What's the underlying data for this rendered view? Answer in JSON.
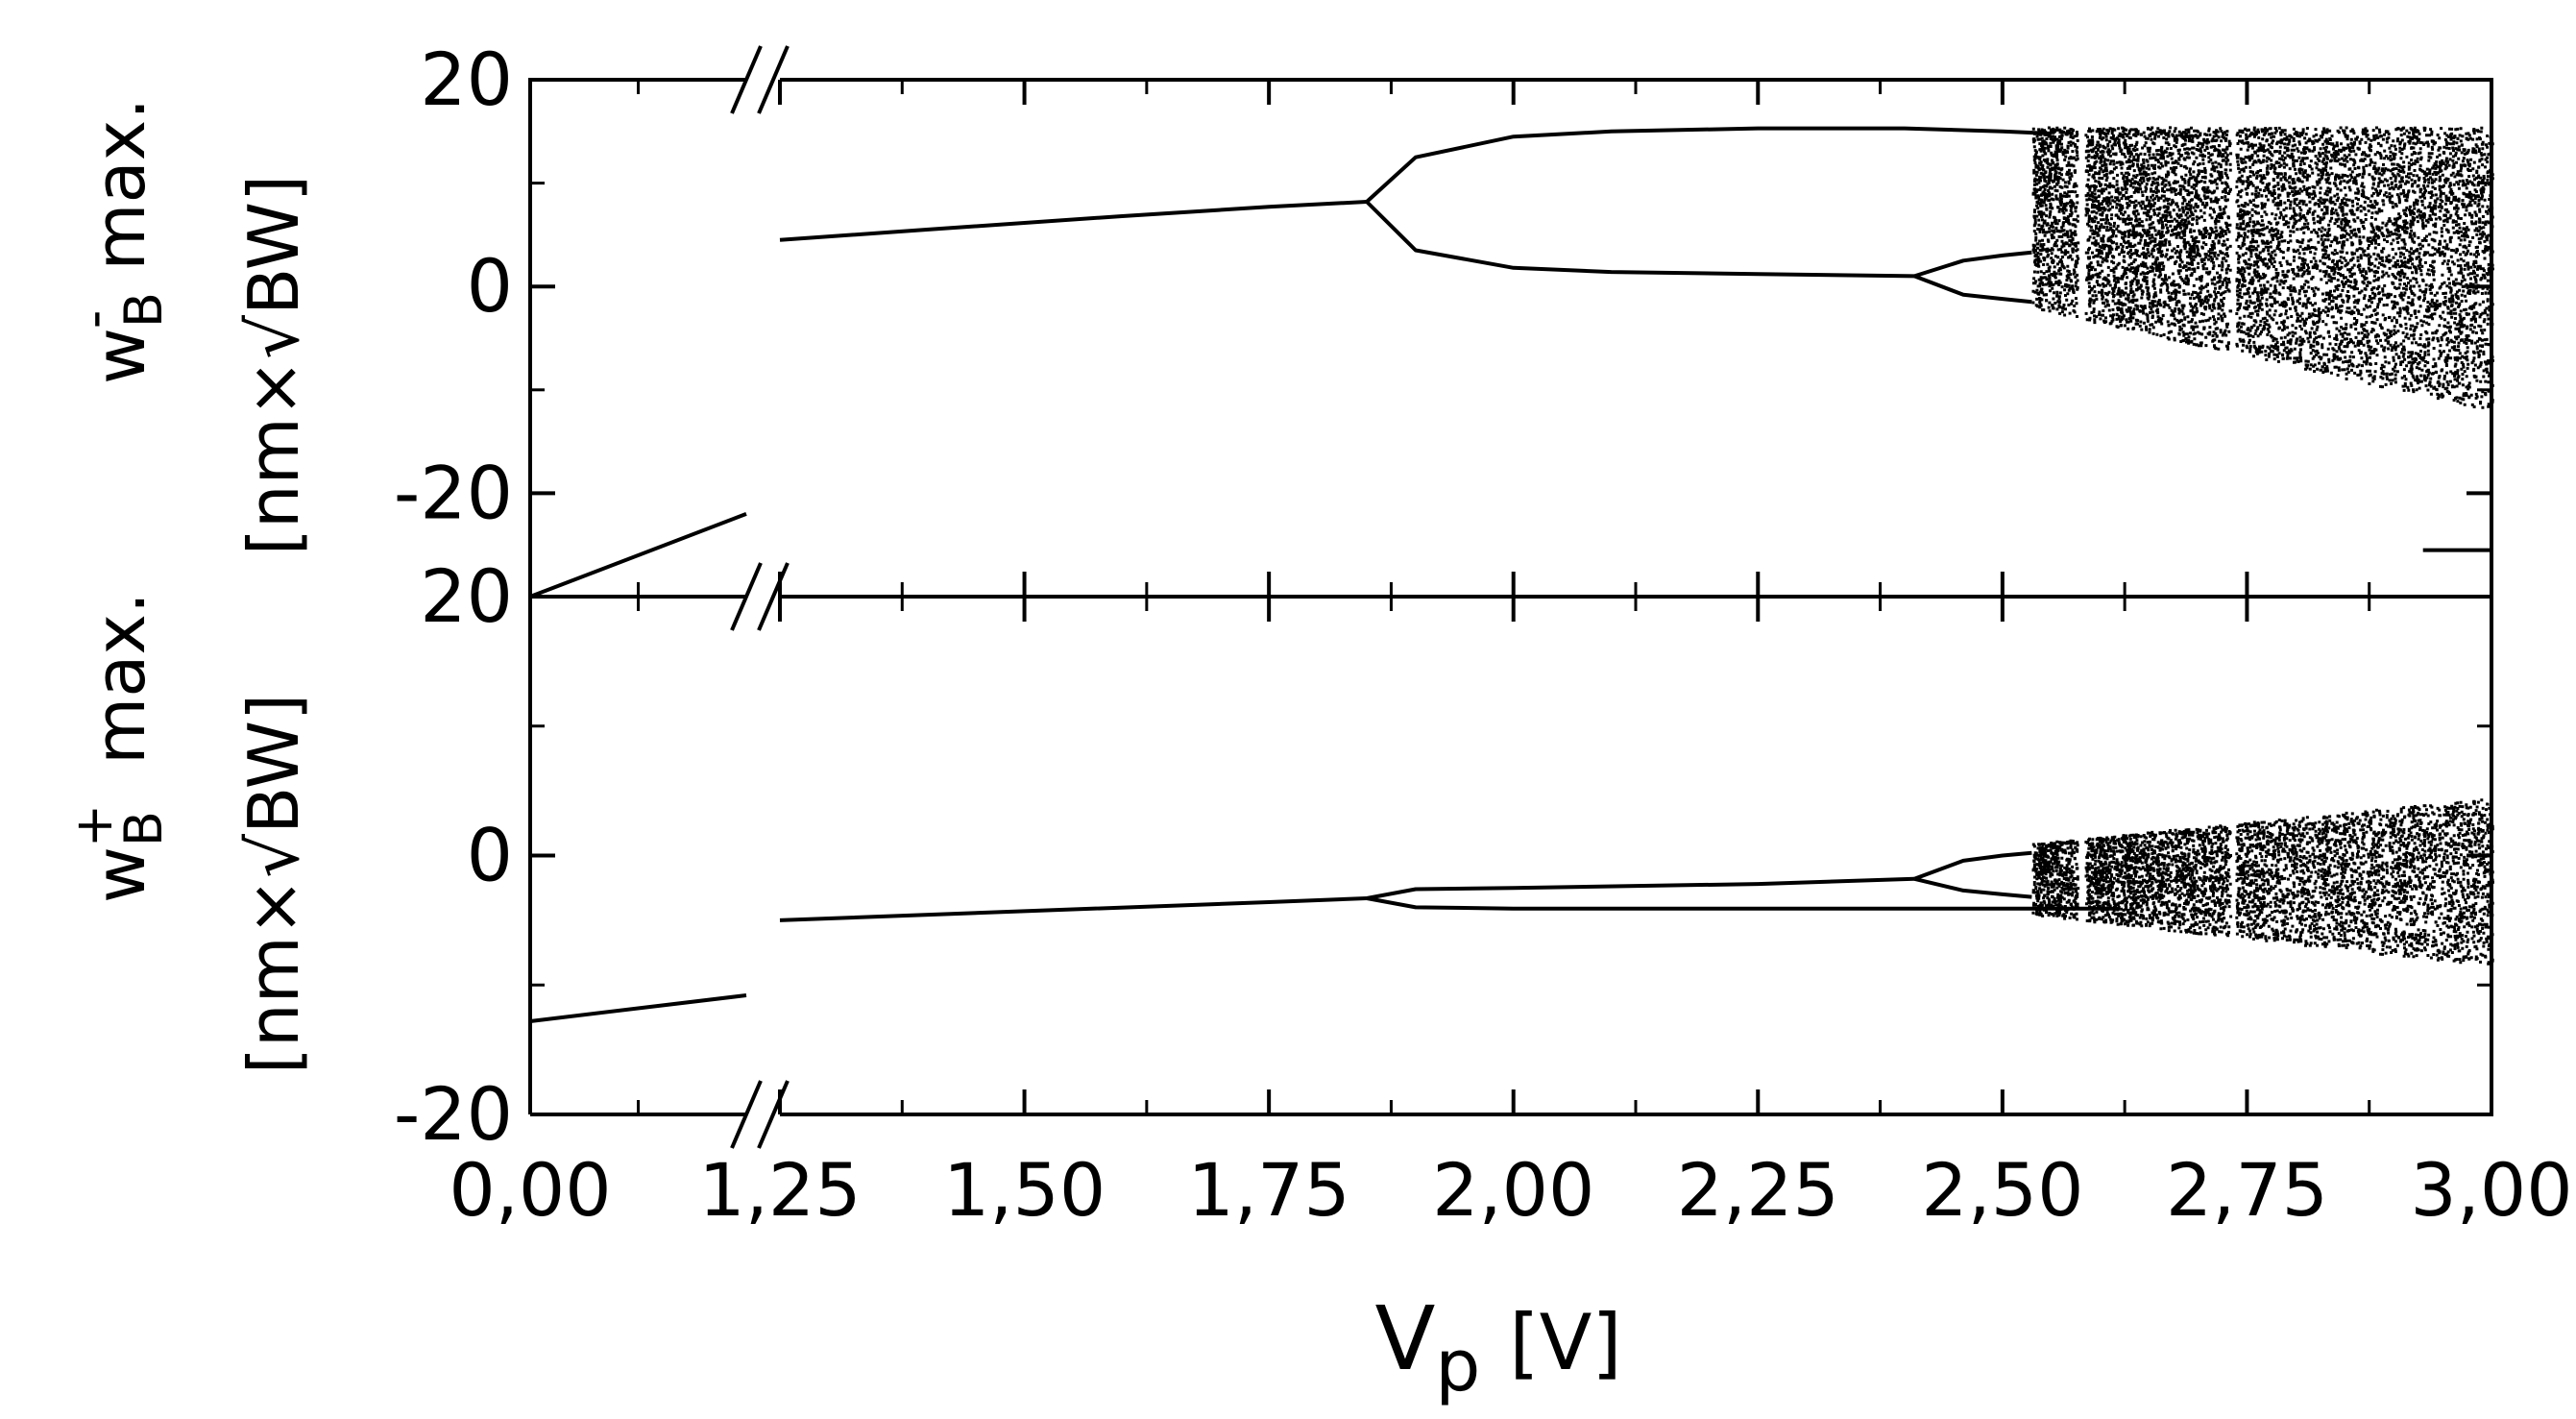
{
  "chart_data": {
    "type": "scatter",
    "description": "Bifurcation diagram with broken x-axis, two stacked panels sharing x",
    "xlabel": {
      "main": "V",
      "sub": "p",
      "unit": "[V]"
    },
    "x_ticks": [
      "0,00",
      "1,25",
      "1,50",
      "1,75",
      "2,00",
      "2,25",
      "2,50",
      "2,75",
      "3,00"
    ],
    "x_break": {
      "segment1": [
        0.0,
        0.55
      ],
      "segment2": [
        1.25,
        3.0
      ]
    },
    "panels": [
      {
        "name": "top",
        "ylabel_main": "w",
        "ylabel_sub": "B",
        "ylabel_sup": "-",
        "ylabel_suffix": " max.",
        "ylabel_units": "[nm×√BW]",
        "ylim": [
          -30,
          20
        ],
        "y_ticks": [
          {
            "value": 20,
            "label": "20"
          },
          {
            "value": 0,
            "label": "0"
          },
          {
            "value": -20,
            "label": "-20"
          }
        ],
        "series": [
          {
            "kind": "line",
            "points": [
              [
                0.0,
                -30
              ],
              [
                0.55,
                -22
              ]
            ]
          },
          {
            "kind": "line",
            "points": [
              [
                1.25,
                4.5
              ],
              [
                1.4,
                5.5
              ],
              [
                1.6,
                6.8
              ],
              [
                1.75,
                7.7
              ],
              [
                1.85,
                8.2
              ]
            ]
          },
          {
            "kind": "line",
            "points": [
              [
                1.85,
                8.2
              ],
              [
                1.9,
                12.5
              ],
              [
                2.0,
                14.5
              ],
              [
                2.1,
                15.0
              ],
              [
                2.25,
                15.3
              ],
              [
                2.4,
                15.3
              ],
              [
                2.5,
                15.0
              ],
              [
                2.55,
                14.8
              ]
            ]
          },
          {
            "kind": "line",
            "points": [
              [
                1.85,
                8.2
              ],
              [
                1.9,
                3.5
              ],
              [
                2.0,
                1.8
              ],
              [
                2.1,
                1.4
              ],
              [
                2.25,
                1.2
              ],
              [
                2.41,
                1.0
              ]
            ]
          },
          {
            "kind": "line",
            "points": [
              [
                2.41,
                1.0
              ],
              [
                2.46,
                2.5
              ],
              [
                2.5,
                3.0
              ],
              [
                2.53,
                3.3
              ]
            ]
          },
          {
            "kind": "line",
            "points": [
              [
                2.41,
                1.0
              ],
              [
                2.46,
                -0.8
              ],
              [
                2.5,
                -1.2
              ],
              [
                2.53,
                -1.5
              ]
            ]
          },
          {
            "kind": "scatter",
            "range": [
              2.53,
              3.0
            ],
            "y_upper_start": 15.5,
            "y_upper_end": 15.5,
            "y_lower_start": -2.0,
            "y_lower_end": -12.0
          },
          {
            "kind": "line",
            "points": [
              [
                2.93,
                -25.5
              ],
              [
                3.0,
                -25.5
              ]
            ]
          }
        ]
      },
      {
        "name": "bottom",
        "ylabel_main": "w",
        "ylabel_sub": "B",
        "ylabel_sup": "+",
        "ylabel_suffix": " max.",
        "ylabel_units": "[nm×√BW]",
        "ylim": [
          -20,
          20
        ],
        "y_ticks": [
          {
            "value": 20,
            "label": "20"
          },
          {
            "value": 0,
            "label": "0"
          },
          {
            "value": -20,
            "label": "-20"
          }
        ],
        "series": [
          {
            "kind": "line",
            "points": [
              [
                0.0,
                -12.8
              ],
              [
                0.55,
                -10.8
              ]
            ]
          },
          {
            "kind": "line",
            "points": [
              [
                1.25,
                -5.0
              ],
              [
                1.5,
                -4.3
              ],
              [
                1.75,
                -3.6
              ],
              [
                1.85,
                -3.3
              ]
            ]
          },
          {
            "kind": "line",
            "points": [
              [
                1.85,
                -3.3
              ],
              [
                1.9,
                -2.6
              ],
              [
                2.0,
                -2.5
              ],
              [
                2.25,
                -2.2
              ],
              [
                2.41,
                -1.8
              ]
            ]
          },
          {
            "kind": "line",
            "points": [
              [
                1.85,
                -3.3
              ],
              [
                1.9,
                -4.0
              ],
              [
                2.0,
                -4.1
              ],
              [
                2.25,
                -4.1
              ],
              [
                2.5,
                -4.1
              ],
              [
                2.62,
                -4.1
              ]
            ]
          },
          {
            "kind": "line",
            "points": [
              [
                2.41,
                -1.8
              ],
              [
                2.46,
                -0.4
              ],
              [
                2.5,
                0.0
              ],
              [
                2.53,
                0.2
              ]
            ]
          },
          {
            "kind": "line",
            "points": [
              [
                2.41,
                -1.8
              ],
              [
                2.46,
                -2.7
              ],
              [
                2.5,
                -3.0
              ],
              [
                2.53,
                -3.2
              ]
            ]
          },
          {
            "kind": "scatter",
            "range": [
              2.53,
              3.0
            ],
            "y_upper_start": 1.0,
            "y_upper_end": 4.5,
            "y_lower_start": -4.5,
            "y_lower_end": -8.5
          }
        ]
      }
    ]
  }
}
